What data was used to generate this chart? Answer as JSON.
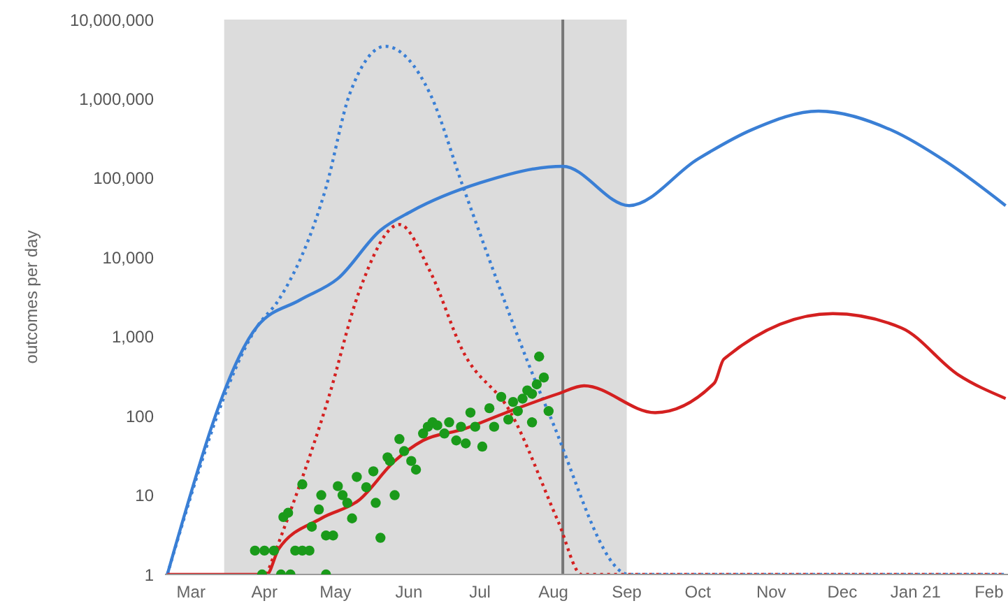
{
  "chart_data": {
    "type": "line",
    "ylabel": "outcomes per day",
    "log": true,
    "xlim": [
      "2020-02-19",
      "2021-02-09"
    ],
    "xticks": [
      {
        "value": "2020-03-01",
        "label": "Mar"
      },
      {
        "value": "2020-04-01",
        "label": "Apr"
      },
      {
        "value": "2020-05-01",
        "label": "May"
      },
      {
        "value": "2020-06-01",
        "label": "Jun"
      },
      {
        "value": "2020-07-01",
        "label": "Jul"
      },
      {
        "value": "2020-08-01",
        "label": "Aug"
      },
      {
        "value": "2020-09-01",
        "label": "Sep"
      },
      {
        "value": "2020-10-01",
        "label": "Oct"
      },
      {
        "value": "2020-11-01",
        "label": "Nov"
      },
      {
        "value": "2020-12-01",
        "label": "Dec"
      },
      {
        "value": "2021-01-01",
        "label": "Jan 21"
      },
      {
        "value": "2021-02-01",
        "label": "Feb"
      }
    ],
    "ylim": [
      1,
      10000000
    ],
    "yticks": [
      1,
      10,
      100,
      {
        "value": 1000,
        "label": "1,000"
      },
      {
        "value": 10000,
        "label": "10,000"
      },
      {
        "value": 100000,
        "label": "100,000"
      },
      {
        "value": 1000000,
        "label": "1,000,000"
      },
      {
        "value": 10000000,
        "label": "10,000,000"
      }
    ],
    "bands": [
      {
        "axis": "x",
        "from": "2020-03-15",
        "to": "2020-09-01",
        "color": "#dcdcdc"
      }
    ],
    "ref_lines": [
      {
        "axis": "x",
        "value": "2020-08-05",
        "color": "#777777"
      }
    ],
    "series": [
      {
        "color": "#3a7fd5",
        "line_style": "solid",
        "marker": "none",
        "x": [
          "2020-02-20",
          "2020-03-29",
          "2020-04-16",
          "2020-05-02",
          "2020-05-20",
          "2020-06-02",
          "2020-07-01",
          "2020-08-05",
          "2020-09-02",
          "2020-10-01",
          "2020-10-24",
          "2020-11-21",
          "2020-12-22",
          "2021-01-14",
          "2021-02-08"
        ],
        "values": [
          1,
          1350,
          2900,
          5400,
          22000,
          38000,
          87000,
          141000,
          45000,
          174000,
          410000,
          700000,
          400000,
          160000,
          45000
        ]
      },
      {
        "color": "#3a7fd5",
        "line_style": "dotted",
        "marker": "none",
        "x": [
          "2020-02-20",
          "2020-03-29",
          "2020-04-07",
          "2020-04-27",
          "2020-05-07",
          "2020-05-22",
          "2020-06-10",
          "2020-06-24",
          "2020-07-30",
          "2020-09-02",
          "2021-02-08"
        ],
        "values": [
          1,
          1350,
          2900,
          76000,
          1150000,
          4600000,
          1150000,
          76000,
          110,
          1,
          1
        ]
      },
      {
        "color": "#d42020",
        "line_style": "solid",
        "marker": "none",
        "x": [
          "2020-02-20",
          "2020-04-02",
          "2020-04-07",
          "2020-04-25",
          "2020-05-11",
          "2020-05-26",
          "2020-06-07",
          "2020-06-24",
          "2020-07-12",
          "2020-08-03",
          "2020-08-14",
          "2020-09-13",
          "2020-10-08",
          "2020-10-12",
          "2020-11-27",
          "2020-12-26",
          "2021-01-19",
          "2021-02-08"
        ],
        "values": [
          1,
          1,
          2.1,
          5.1,
          8.7,
          27,
          49,
          68,
          110,
          190,
          240,
          110,
          260,
          520,
          1950,
          1290,
          330,
          166
        ]
      },
      {
        "color": "#d42020",
        "line_style": "dotted",
        "marker": "none",
        "x": [
          "2020-04-02",
          "2020-04-28",
          "2020-05-11",
          "2020-05-28",
          "2020-06-10",
          "2020-06-24",
          "2020-07-14",
          "2020-08-03",
          "2020-08-13",
          "2021-02-08"
        ],
        "values": [
          1,
          166,
          3700,
          26000,
          6600,
          640,
          110,
          4.7,
          1,
          1
        ]
      },
      {
        "type": "scatter",
        "color": "#1a9a1a",
        "marker": "circle",
        "x": [
          "2020-03-28",
          "2020-04-01",
          "2020-04-05",
          "2020-04-14",
          "2020-04-17",
          "2020-04-20",
          "2020-03-31",
          "2020-04-08",
          "2020-04-12",
          "2020-04-27",
          "2020-04-09",
          "2020-04-11",
          "2020-04-17",
          "2020-04-21",
          "2020-04-24",
          "2020-04-25",
          "2020-04-27",
          "2020-04-30",
          "2020-05-02",
          "2020-05-04",
          "2020-05-06",
          "2020-05-08",
          "2020-05-10",
          "2020-05-14",
          "2020-05-17",
          "2020-05-18",
          "2020-05-20",
          "2020-05-23",
          "2020-05-24",
          "2020-05-26",
          "2020-05-28",
          "2020-05-30",
          "2020-06-02",
          "2020-06-04",
          "2020-06-07",
          "2020-06-09",
          "2020-06-11",
          "2020-06-13",
          "2020-06-16",
          "2020-06-18",
          "2020-06-21",
          "2020-06-23",
          "2020-06-25",
          "2020-06-27",
          "2020-06-29",
          "2020-07-02",
          "2020-07-05",
          "2020-07-07",
          "2020-07-10",
          "2020-07-13",
          "2020-07-15",
          "2020-07-17",
          "2020-07-19",
          "2020-07-21",
          "2020-07-23",
          "2020-07-23",
          "2020-07-25",
          "2020-07-26",
          "2020-07-28",
          "2020-07-30"
        ],
        "values": [
          2,
          2,
          2,
          2,
          2,
          2,
          1,
          1,
          1,
          1,
          5.3,
          6,
          13.7,
          4,
          6.6,
          10,
          3.1,
          3.1,
          13,
          10,
          8,
          5.1,
          17,
          12.6,
          20,
          8,
          2.9,
          30,
          27,
          10,
          51,
          36,
          27,
          21,
          60,
          73,
          83,
          76,
          60,
          83,
          49,
          73,
          45,
          110,
          73,
          41,
          125,
          73,
          174,
          90,
          150,
          115,
          165,
          210,
          83,
          190,
          250,
          560,
          305,
          115
        ]
      }
    ]
  }
}
